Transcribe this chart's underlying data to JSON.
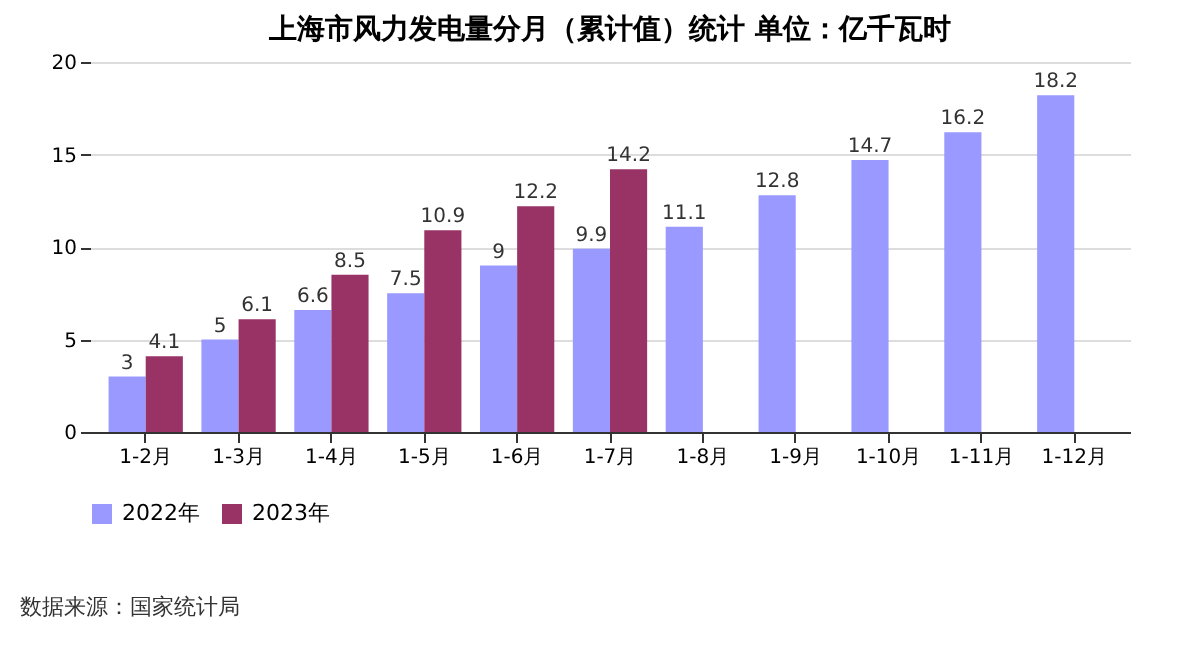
{
  "chart_data": {
    "type": "bar",
    "title": "上海市风力发电量分月（累计值）统计 单位：亿千瓦时",
    "categories": [
      "1-2月",
      "1-3月",
      "1-4月",
      "1-5月",
      "1-6月",
      "1-7月",
      "1-8月",
      "1-9月",
      "1-10月",
      "1-11月",
      "1-12月"
    ],
    "series": [
      {
        "name": "2022年",
        "color": "#9999ff",
        "values": [
          3,
          5,
          6.6,
          7.5,
          9,
          9.9,
          11.1,
          12.8,
          14.7,
          16.2,
          18.2
        ]
      },
      {
        "name": "2023年",
        "color": "#993366",
        "values": [
          4.1,
          6.1,
          8.5,
          10.9,
          12.2,
          14.2,
          null,
          null,
          null,
          null,
          null
        ]
      }
    ],
    "ylim": [
      0,
      20
    ],
    "yticks": [
      0,
      5,
      10,
      15,
      20
    ],
    "grid": "y",
    "legend": "bottom",
    "data_labels": true,
    "annotations": [
      "数据来源：国家统计局"
    ]
  }
}
